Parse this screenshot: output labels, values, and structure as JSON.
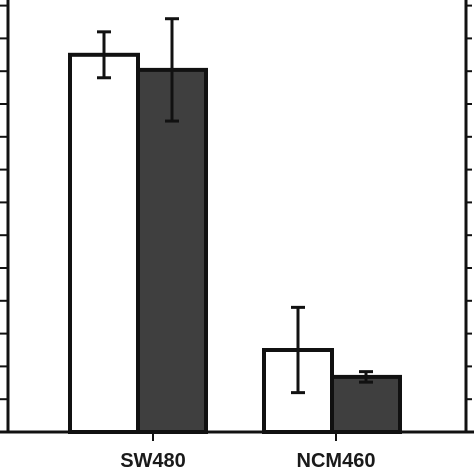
{
  "chart_data": {
    "type": "bar",
    "categories": [
      "SW480",
      "NCM460"
    ],
    "series": [
      {
        "values": [
          5.75,
          1.25
        ],
        "errors": [
          0.35,
          0.65
        ],
        "color": "#ffffff"
      },
      {
        "values": [
          5.52,
          0.84
        ],
        "errors": [
          0.78,
          0.08
        ],
        "color": "#3f3f3f"
      }
    ],
    "ylim": [
      -0.05,
      6.7
    ],
    "y_tick_step": 0.5,
    "right_axis": true,
    "grid": false,
    "legend": "none",
    "title": "",
    "xlabel": "",
    "ylabel": ""
  }
}
